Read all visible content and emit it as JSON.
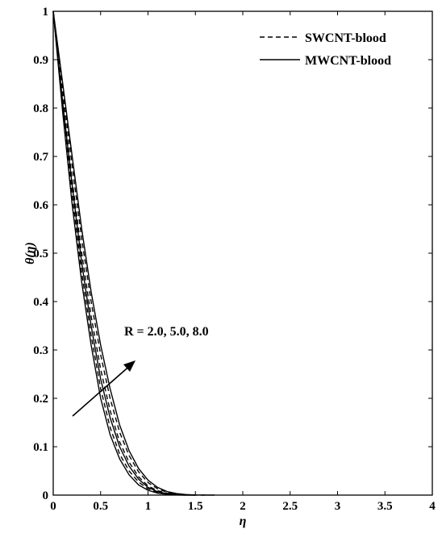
{
  "chart_data": {
    "type": "line",
    "title": "",
    "xlabel": "η",
    "ylabel": "θ(η)",
    "xlim": [
      0,
      4
    ],
    "ylim": [
      0,
      1
    ],
    "x_ticks": [
      "0",
      "0.5",
      "1",
      "1.5",
      "2",
      "2.5",
      "3",
      "3.5",
      "4"
    ],
    "y_ticks": [
      "0",
      "0.1",
      "0.2",
      "0.3",
      "0.4",
      "0.5",
      "0.6",
      "0.7",
      "0.8",
      "0.9",
      "1"
    ],
    "grid": false,
    "legend_position": "top-right",
    "legend": [
      {
        "label": "SWCNT-blood",
        "style": "dashed"
      },
      {
        "label": "MWCNT-blood",
        "style": "solid"
      }
    ],
    "annotation": "R = 2.0, 5.0, 8.0",
    "series": [
      {
        "group": "SWCNT-blood",
        "R": 2.0,
        "style": "dashed",
        "x": [
          0,
          0.1,
          0.2,
          0.3,
          0.4,
          0.5,
          0.6,
          0.7,
          0.8,
          0.9,
          1.0,
          1.1,
          1.2,
          1.3,
          1.4,
          1.5
        ],
        "y": [
          1.0,
          0.8,
          0.62,
          0.46,
          0.33,
          0.22,
          0.14,
          0.085,
          0.05,
          0.027,
          0.013,
          0.006,
          0.002,
          0.0005,
          0.0001,
          0
        ]
      },
      {
        "group": "SWCNT-blood",
        "R": 5.0,
        "style": "dashed",
        "x": [
          0,
          0.1,
          0.2,
          0.3,
          0.4,
          0.5,
          0.6,
          0.7,
          0.8,
          0.9,
          1.0,
          1.1,
          1.2,
          1.3,
          1.4,
          1.5
        ],
        "y": [
          1.0,
          0.82,
          0.65,
          0.5,
          0.37,
          0.26,
          0.175,
          0.11,
          0.068,
          0.038,
          0.019,
          0.009,
          0.004,
          0.0012,
          0.0003,
          0
        ]
      },
      {
        "group": "SWCNT-blood",
        "R": 8.0,
        "style": "dashed",
        "x": [
          0,
          0.1,
          0.2,
          0.3,
          0.4,
          0.5,
          0.6,
          0.7,
          0.8,
          0.9,
          1.0,
          1.1,
          1.2,
          1.3,
          1.4,
          1.5,
          1.6
        ],
        "y": [
          1.0,
          0.84,
          0.68,
          0.53,
          0.4,
          0.29,
          0.2,
          0.13,
          0.082,
          0.048,
          0.026,
          0.013,
          0.006,
          0.0025,
          0.0008,
          0.0002,
          0
        ]
      },
      {
        "group": "MWCNT-blood",
        "R": 2.0,
        "style": "solid",
        "x": [
          0,
          0.1,
          0.2,
          0.3,
          0.4,
          0.5,
          0.6,
          0.7,
          0.8,
          0.9,
          1.0,
          1.1,
          1.2,
          1.3,
          1.4
        ],
        "y": [
          1.0,
          0.79,
          0.6,
          0.44,
          0.31,
          0.2,
          0.125,
          0.075,
          0.042,
          0.021,
          0.01,
          0.004,
          0.0015,
          0.0003,
          0
        ]
      },
      {
        "group": "MWCNT-blood",
        "R": 5.0,
        "style": "solid",
        "x": [
          0,
          0.1,
          0.2,
          0.3,
          0.4,
          0.5,
          0.6,
          0.7,
          0.8,
          0.9,
          1.0,
          1.1,
          1.2,
          1.3,
          1.4,
          1.5
        ],
        "y": [
          1.0,
          0.81,
          0.64,
          0.48,
          0.35,
          0.24,
          0.16,
          0.1,
          0.06,
          0.033,
          0.016,
          0.007,
          0.003,
          0.0009,
          0.0002,
          0
        ]
      },
      {
        "group": "MWCNT-blood",
        "R": 8.0,
        "style": "solid",
        "x": [
          0,
          0.1,
          0.2,
          0.3,
          0.4,
          0.5,
          0.6,
          0.7,
          0.8,
          0.9,
          1.0,
          1.1,
          1.2,
          1.3,
          1.4,
          1.5,
          1.6,
          1.7
        ],
        "y": [
          1.0,
          0.85,
          0.7,
          0.55,
          0.42,
          0.31,
          0.22,
          0.145,
          0.092,
          0.055,
          0.031,
          0.016,
          0.0075,
          0.0032,
          0.0012,
          0.0004,
          0.0001,
          0
        ]
      }
    ]
  }
}
